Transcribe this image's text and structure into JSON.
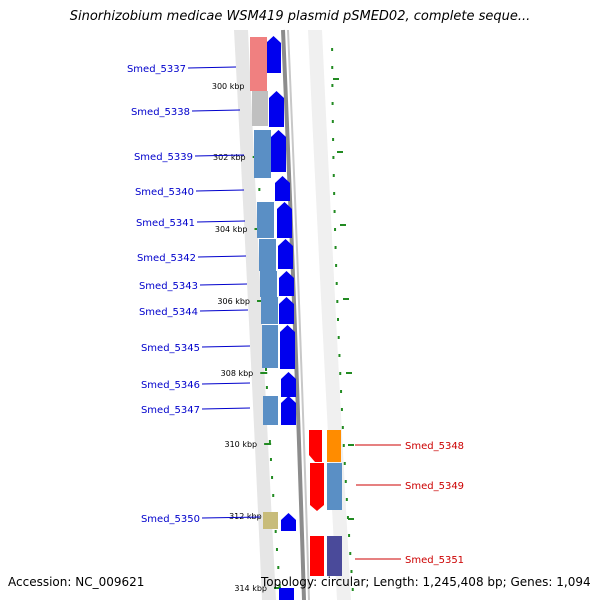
{
  "title": "Sinorhizobium medicae WSM419 plasmid pSMED02, complete seque...",
  "footer": {
    "accession": "Accession: NC_009621",
    "summary": "Topology: circular; Length: 1,245,408 bp; Genes: 1,094"
  },
  "colors": {
    "forward_label": "#0000cc",
    "reverse_label": "#cc0000",
    "backbone": "#909090",
    "tick": "#228b22",
    "cds_forward": "#0000ee",
    "cds_reverse": "#ff0000"
  },
  "ticks": [
    {
      "label": "300 kbp",
      "kbp": 300
    },
    {
      "label": "302 kbp",
      "kbp": 302
    },
    {
      "label": "304 kbp",
      "kbp": 304
    },
    {
      "label": "306 kbp",
      "kbp": 306
    },
    {
      "label": "308 kbp",
      "kbp": 308
    },
    {
      "label": "310 kbp",
      "kbp": 310
    },
    {
      "label": "312 kbp",
      "kbp": 312
    },
    {
      "label": "314 kbp",
      "kbp": 314
    }
  ],
  "genes": [
    {
      "name": "Smed_5337",
      "strand": "+"
    },
    {
      "name": "Smed_5338",
      "strand": "+"
    },
    {
      "name": "Smed_5339",
      "strand": "+"
    },
    {
      "name": "Smed_5340",
      "strand": "+"
    },
    {
      "name": "Smed_5341",
      "strand": "+"
    },
    {
      "name": "Smed_5342",
      "strand": "+"
    },
    {
      "name": "Smed_5343",
      "strand": "+"
    },
    {
      "name": "Smed_5344",
      "strand": "+"
    },
    {
      "name": "Smed_5345",
      "strand": "+"
    },
    {
      "name": "Smed_5346",
      "strand": "+"
    },
    {
      "name": "Smed_5347",
      "strand": "+"
    },
    {
      "name": "Smed_5348",
      "strand": "-"
    },
    {
      "name": "Smed_5349",
      "strand": "-"
    },
    {
      "name": "Smed_5350",
      "strand": "+"
    },
    {
      "name": "Smed_5351",
      "strand": "-"
    }
  ]
}
